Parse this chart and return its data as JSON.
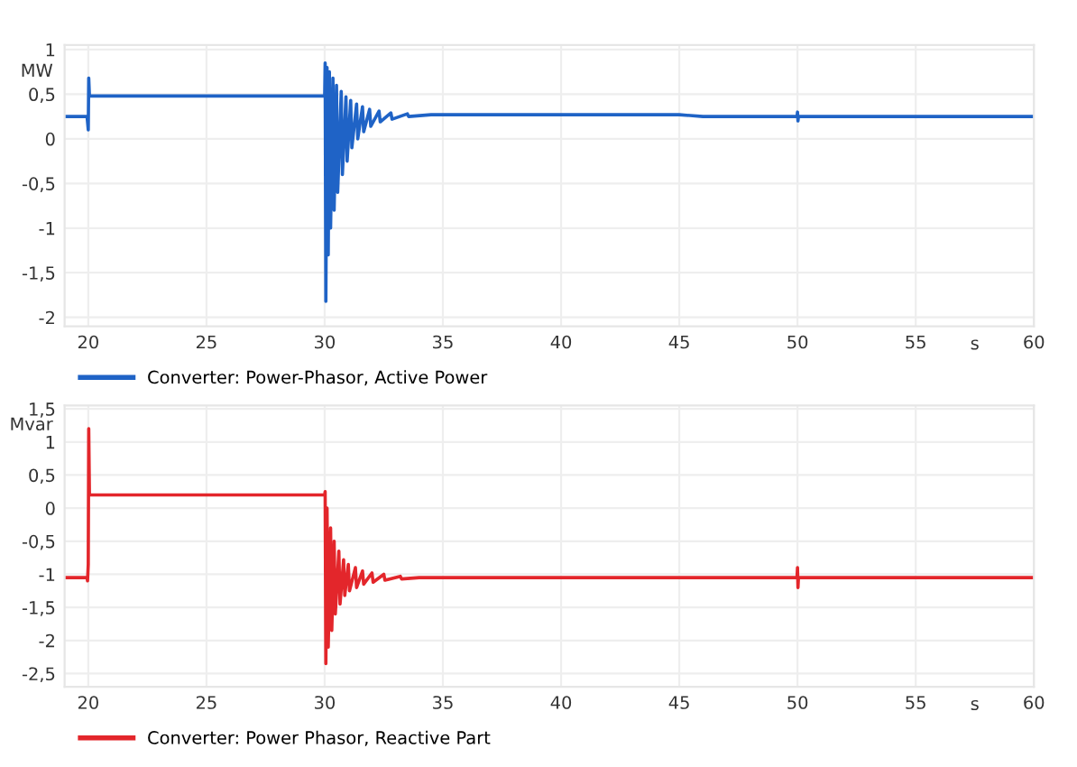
{
  "chart_data": [
    {
      "type": "line",
      "xlabel": "s",
      "ylabel": "MW",
      "xlim": [
        19,
        60
      ],
      "ylim": [
        -2.1,
        1.05
      ],
      "xticks": [
        20,
        25,
        30,
        35,
        40,
        45,
        50,
        55,
        60
      ],
      "yticks": [
        1,
        {
          "value": 0.5,
          "label": "0,5"
        },
        0,
        {
          "value": -0.5,
          "label": "-0,5"
        },
        -1,
        {
          "value": -1.5,
          "label": "-1,5"
        },
        -2
      ],
      "grid": true,
      "legend": "bottom",
      "marker": "none",
      "line_style": "solid",
      "series": [
        {
          "name": "Converter: Power-Phasor, Active Power",
          "color": "#1f63c6",
          "x": [
            19,
            19.95,
            20,
            20.02,
            20.05,
            30,
            30.02,
            30.05,
            30.1,
            30.15,
            30.2,
            30.25,
            30.35,
            30.4,
            30.5,
            30.55,
            30.7,
            30.75,
            30.9,
            30.95,
            31.1,
            31.15,
            31.35,
            31.4,
            31.6,
            31.65,
            31.9,
            31.95,
            32.3,
            32.35,
            32.8,
            32.85,
            33.5,
            33.55,
            34.5,
            45,
            46,
            49.98,
            50,
            50.02,
            50.04,
            60
          ],
          "values": [
            0.25,
            0.25,
            0.1,
            0.68,
            0.48,
            0.48,
            0.85,
            -1.82,
            0.8,
            -1.3,
            0.75,
            -1.0,
            0.68,
            -0.8,
            0.6,
            -0.6,
            0.53,
            -0.4,
            0.47,
            -0.25,
            0.43,
            -0.1,
            0.39,
            0.0,
            0.36,
            0.08,
            0.33,
            0.14,
            0.31,
            0.19,
            0.29,
            0.22,
            0.28,
            0.25,
            0.27,
            0.27,
            0.25,
            0.25,
            0.3,
            0.2,
            0.25,
            0.25
          ]
        }
      ]
    },
    {
      "type": "line",
      "xlabel": "s",
      "ylabel": "Mvar",
      "xlim": [
        19,
        60
      ],
      "ylim": [
        -2.7,
        1.55
      ],
      "xticks": [
        20,
        25,
        30,
        35,
        40,
        45,
        50,
        55,
        60
      ],
      "yticks": [
        {
          "value": 1.5,
          "label": "1,5"
        },
        1,
        {
          "value": 0.5,
          "label": "0,5"
        },
        0,
        {
          "value": -0.5,
          "label": "-0,5"
        },
        -1,
        {
          "value": -1.5,
          "label": "-1,5"
        },
        -2,
        {
          "value": -2.5,
          "label": "-2,5"
        }
      ],
      "grid": true,
      "legend": "bottom",
      "marker": "none",
      "line_style": "solid",
      "series": [
        {
          "name": "Converter: Power Phasor, Reactive Part",
          "color": "#e3262b",
          "x": [
            19,
            19.95,
            19.97,
            20,
            20.02,
            20.05,
            30,
            30.02,
            30.05,
            30.1,
            30.15,
            30.25,
            30.3,
            30.4,
            30.45,
            30.6,
            30.65,
            30.8,
            30.85,
            31.0,
            31.05,
            31.3,
            31.35,
            31.6,
            31.65,
            32.0,
            32.05,
            32.5,
            32.55,
            33.2,
            33.25,
            34,
            49.98,
            50,
            50.02,
            50.04,
            60
          ],
          "values": [
            -1.05,
            -1.05,
            -1.1,
            -0.85,
            1.2,
            0.2,
            0.2,
            0.25,
            -2.35,
            0.0,
            -2.1,
            -0.3,
            -1.85,
            -0.5,
            -1.6,
            -0.65,
            -1.45,
            -0.78,
            -1.32,
            -0.85,
            -1.25,
            -0.9,
            -1.2,
            -0.95,
            -1.15,
            -0.98,
            -1.12,
            -1.0,
            -1.09,
            -1.03,
            -1.07,
            -1.05,
            -1.05,
            -0.9,
            -1.2,
            -1.05,
            -1.05
          ]
        }
      ]
    }
  ]
}
